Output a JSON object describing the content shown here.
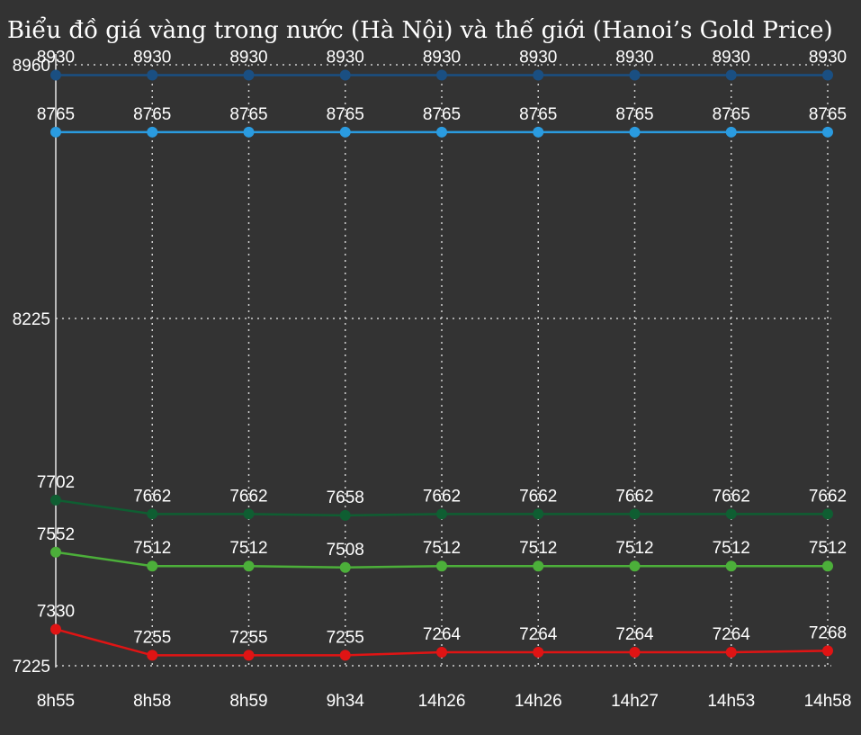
{
  "chart_data": {
    "type": "line",
    "title": "Biểu đồ giá vàng trong nước (Hà Nội) và thế giới (Hanoi’s Gold Price)",
    "categories": [
      "8h55",
      "8h58",
      "8h59",
      "9h34",
      "14h26",
      "14h26",
      "14h27",
      "14h53",
      "14h58"
    ],
    "yticks": [
      8960,
      8225,
      7225
    ],
    "ylim": [
      7225,
      8960
    ],
    "grid": true,
    "series": [
      {
        "color": "#1a4f82",
        "values": [
          8930,
          8930,
          8930,
          8930,
          8930,
          8930,
          8930,
          8930,
          8930
        ]
      },
      {
        "color": "#2a9be0",
        "values": [
          8765,
          8765,
          8765,
          8765,
          8765,
          8765,
          8765,
          8765,
          8765
        ]
      },
      {
        "color": "#0f5e32",
        "values": [
          7702,
          7662,
          7662,
          7658,
          7662,
          7662,
          7662,
          7662,
          7662
        ]
      },
      {
        "color": "#4caf3a",
        "values": [
          7552,
          7512,
          7512,
          7508,
          7512,
          7512,
          7512,
          7512,
          7512
        ]
      },
      {
        "color": "#e01414",
        "values": [
          7330,
          7255,
          7255,
          7255,
          7264,
          7264,
          7264,
          7264,
          7268
        ]
      }
    ]
  }
}
